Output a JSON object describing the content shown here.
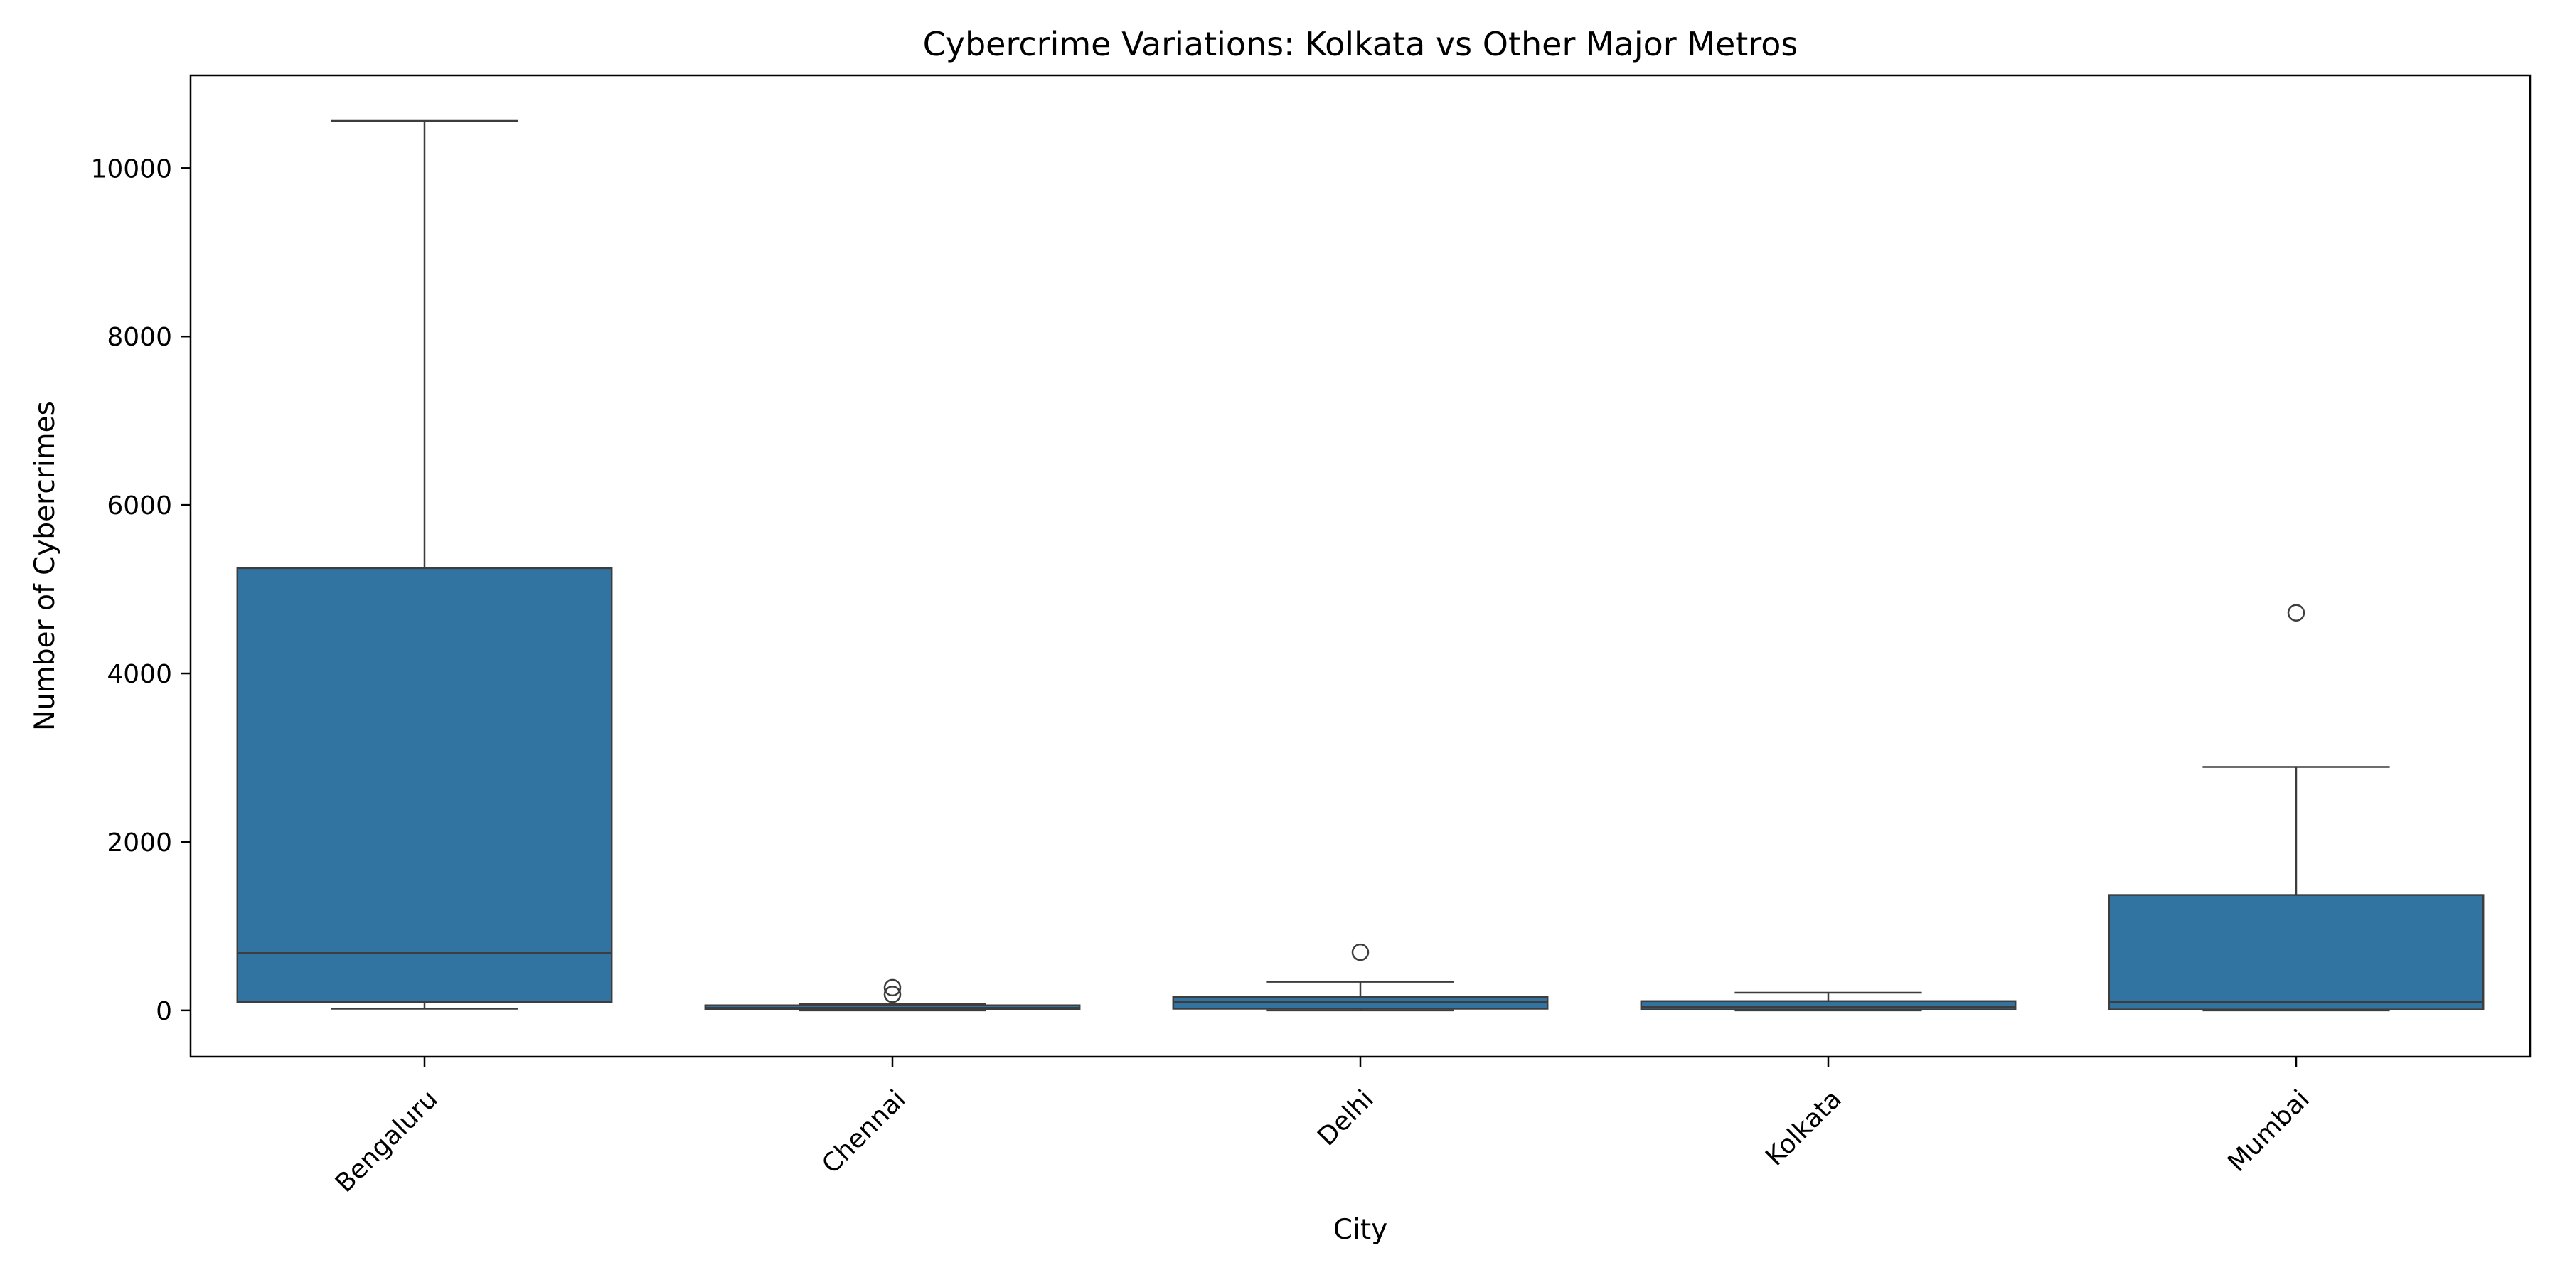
{
  "chart_data": {
    "type": "box",
    "title": "Cybercrime Variations: Kolkata vs Other Major Metros",
    "xlabel": "City",
    "ylabel": "Number of Cybercrimes",
    "ylim": [
      -550,
      11100
    ],
    "yticks": [
      0,
      2000,
      4000,
      6000,
      8000,
      10000
    ],
    "grid": false,
    "legend": "none",
    "box_color": "#3274a1",
    "line_color": "#3d3d3d",
    "categories": [
      "Bengaluru",
      "Chennai",
      "Delhi",
      "Kolkata",
      "Mumbai"
    ],
    "boxes": [
      {
        "category": "Bengaluru",
        "whisker_low": 20,
        "q1": 100,
        "median": 680,
        "q3": 5250,
        "whisker_high": 10560,
        "outliers": []
      },
      {
        "category": "Chennai",
        "whisker_low": 0,
        "q1": 10,
        "median": 30,
        "q3": 60,
        "whisker_high": 80,
        "outliers": [
          190,
          270
        ]
      },
      {
        "category": "Delhi",
        "whisker_low": 0,
        "q1": 20,
        "median": 100,
        "q3": 160,
        "whisker_high": 340,
        "outliers": [
          690
        ]
      },
      {
        "category": "Kolkata",
        "whisker_low": 0,
        "q1": 10,
        "median": 40,
        "q3": 110,
        "whisker_high": 210,
        "outliers": []
      },
      {
        "category": "Mumbai",
        "whisker_low": 0,
        "q1": 10,
        "median": 100,
        "q3": 1370,
        "whisker_high": 2890,
        "outliers": [
          4720
        ]
      }
    ]
  }
}
